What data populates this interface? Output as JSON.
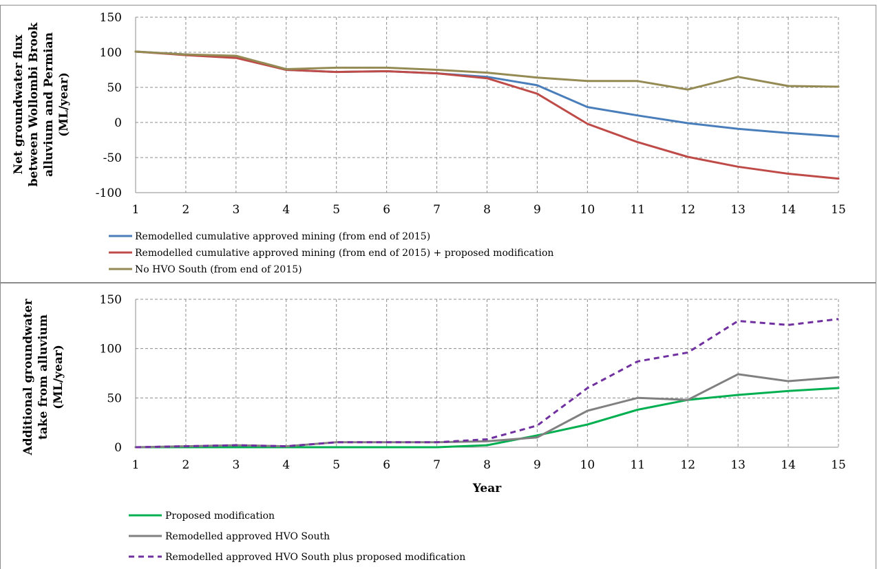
{
  "chart_data": [
    {
      "type": "line",
      "title": "",
      "xlabel": "",
      "ylabel": [
        "Net groundwater flux",
        "between Wollombi Brook",
        "alluvium and Permian",
        "(ML/year)"
      ],
      "x": [
        1,
        2,
        3,
        4,
        5,
        6,
        7,
        8,
        9,
        10,
        11,
        12,
        13,
        14,
        15
      ],
      "xticks": [
        "1",
        "2",
        "3",
        "4",
        "5",
        "6",
        "7",
        "8",
        "9",
        "10",
        "11",
        "12",
        "13",
        "14",
        "15"
      ],
      "ylim": [
        -100,
        150
      ],
      "yticks": [
        "150",
        "100",
        "50",
        "0",
        "-50",
        "-100"
      ],
      "grid": true,
      "legend_position": "bottom",
      "series": [
        {
          "name": "Remodelled cumulative approved mining (from end of 2015)",
          "color": "#4a7ebb",
          "dashed": false,
          "values": [
            101,
            97,
            93,
            75,
            72,
            73,
            70,
            65,
            53,
            22,
            10,
            -1,
            -9,
            -15,
            -20
          ]
        },
        {
          "name": "Remodelled cumulative approved mining (from end of 2015) + proposed modification",
          "color": "#be4b48",
          "dashed": false,
          "values": [
            101,
            96,
            92,
            75,
            72,
            73,
            70,
            63,
            41,
            -2,
            -28,
            -49,
            -63,
            -73,
            -80
          ]
        },
        {
          "name": "No HVO South (from end of 2015)",
          "color": "#948a54",
          "dashed": false,
          "values": [
            101,
            97,
            95,
            76,
            78,
            78,
            75,
            71,
            64,
            59,
            59,
            47,
            65,
            52,
            51
          ]
        }
      ]
    },
    {
      "type": "line",
      "title": "",
      "xlabel": "Year",
      "ylabel": [
        "Additional groundwater",
        "take from alluvium",
        "(ML/year)"
      ],
      "x": [
        1,
        2,
        3,
        4,
        5,
        6,
        7,
        8,
        9,
        10,
        11,
        12,
        13,
        14,
        15
      ],
      "xticks": [
        "1",
        "2",
        "3",
        "4",
        "5",
        "6",
        "7",
        "8",
        "9",
        "10",
        "11",
        "12",
        "13",
        "14",
        "15"
      ],
      "ylim": [
        0,
        150
      ],
      "yticks": [
        "150",
        "100",
        "50",
        "0"
      ],
      "grid": true,
      "legend_position": "bottom",
      "series": [
        {
          "name": "Proposed modification",
          "color": "#00b050",
          "dashed": false,
          "values": [
            0,
            0,
            0,
            0,
            0,
            0,
            0,
            2,
            12,
            23,
            38,
            48,
            53,
            57,
            60
          ]
        },
        {
          "name": "Remodelled approved HVO South",
          "color": "#808080",
          "dashed": false,
          "values": [
            0,
            1,
            2,
            1,
            5,
            5,
            5,
            6,
            10,
            37,
            50,
            48,
            74,
            67,
            71
          ]
        },
        {
          "name": "Remodelled approved HVO South plus proposed modification",
          "color": "#7030a0",
          "dashed": true,
          "values": [
            0,
            1,
            2,
            1,
            5,
            5,
            5,
            8,
            22,
            60,
            87,
            96,
            128,
            124,
            130
          ]
        }
      ]
    }
  ]
}
